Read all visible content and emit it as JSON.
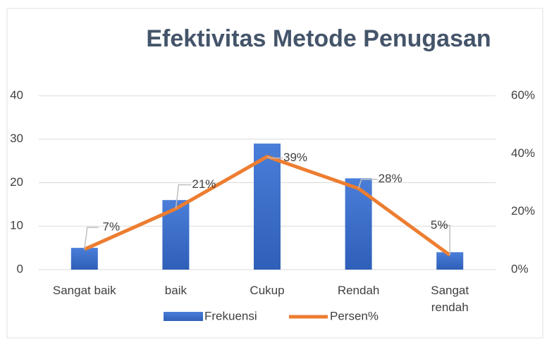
{
  "chart_data": {
    "type": "bar",
    "title": "Efektivitas Metode Penugasan",
    "categories": [
      "Sangat baik",
      "baik",
      "Cukup",
      "Rendah",
      "Sangat rendah"
    ],
    "series": [
      {
        "name": "Frekuensi",
        "color": "#4472c4",
        "values": [
          5,
          16,
          29,
          21,
          4
        ]
      },
      {
        "name": "Persen%",
        "color": "#ed7d31",
        "type": "line",
        "axis": "y2",
        "values": [
          7,
          21,
          39,
          28,
          5
        ],
        "value_labels": [
          "7%",
          "21%",
          "39%",
          "28%",
          "5%"
        ]
      }
    ],
    "ylim": [
      0,
      40
    ],
    "yticks": [
      0,
      10,
      20,
      30,
      40
    ],
    "y2lim": [
      0,
      60
    ],
    "y2ticks": [
      {
        "value": 0,
        "label": "0%"
      },
      {
        "value": 20,
        "label": "20%"
      },
      {
        "value": 40,
        "label": "40%"
      },
      {
        "value": 60,
        "label": "60%"
      }
    ],
    "grid": true,
    "legend": "bottom"
  }
}
